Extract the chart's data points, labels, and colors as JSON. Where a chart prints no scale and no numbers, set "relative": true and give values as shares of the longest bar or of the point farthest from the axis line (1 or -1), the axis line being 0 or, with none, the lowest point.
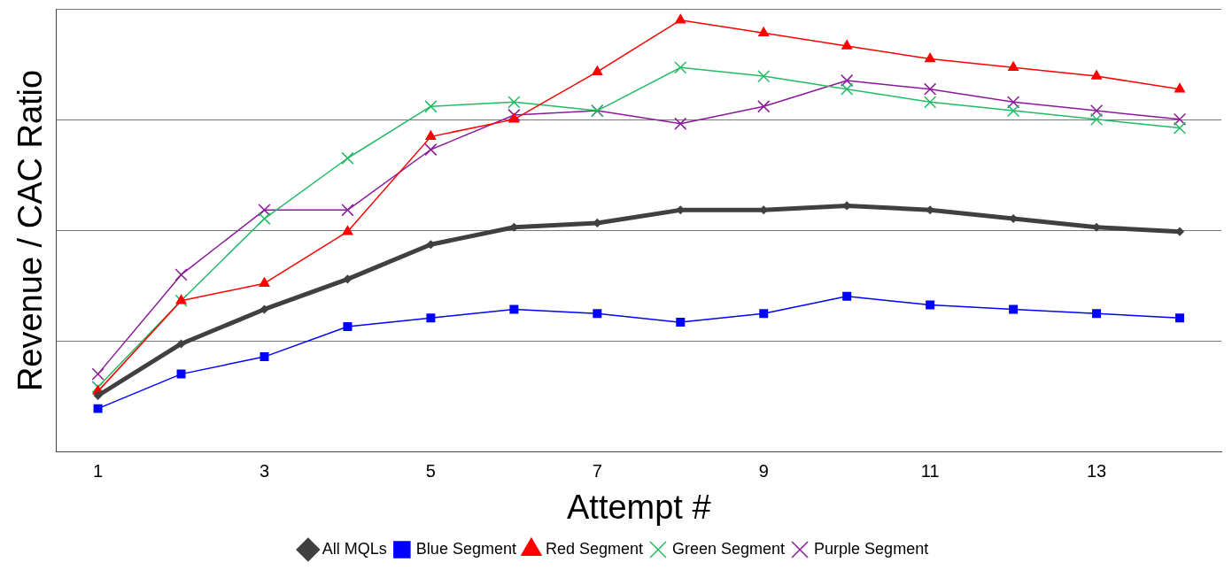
{
  "chart_data": {
    "type": "line",
    "relative": true,
    "xlabel": "Attempt #",
    "ylabel": "Revenue / CAC Ratio",
    "categories": [
      "1",
      null,
      "3",
      null,
      "5",
      null,
      "7",
      null,
      "9",
      null,
      "11",
      null,
      "13",
      null
    ],
    "series": [
      {
        "name": "All MQLs",
        "color": "#404040",
        "marker": "diamond",
        "values": [
          0.13,
          0.25,
          0.33,
          0.4,
          0.48,
          0.52,
          0.53,
          0.56,
          0.56,
          0.57,
          0.56,
          0.54,
          0.52,
          0.51
        ]
      },
      {
        "name": "Blue Segment",
        "color": "#0000ff",
        "marker": "square",
        "values": [
          0.1,
          0.18,
          0.22,
          0.29,
          0.31,
          0.33,
          0.32,
          0.3,
          0.32,
          0.36,
          0.34,
          0.33,
          0.32,
          0.31
        ]
      },
      {
        "name": "Red Segment",
        "color": "#ff0000",
        "marker": "triangle",
        "values": [
          0.14,
          0.35,
          0.39,
          0.51,
          0.73,
          0.77,
          0.88,
          1.0,
          0.97,
          0.94,
          0.91,
          0.89,
          0.87,
          0.84
        ]
      },
      {
        "name": "Green Segment",
        "color": "#22bb66",
        "marker": "cross",
        "values": [
          0.15,
          0.35,
          0.54,
          0.68,
          0.8,
          0.81,
          0.79,
          0.89,
          0.87,
          0.84,
          0.81,
          0.79,
          0.77,
          0.75
        ]
      },
      {
        "name": "Purple Segment",
        "color": "#8b1a9b",
        "marker": "cross",
        "values": [
          0.18,
          0.41,
          0.56,
          0.56,
          0.7,
          0.78,
          0.79,
          0.76,
          0.8,
          0.86,
          0.84,
          0.81,
          0.79,
          0.77
        ]
      }
    ],
    "grid": "y",
    "legend": "bottom",
    "line_style": "solid"
  }
}
